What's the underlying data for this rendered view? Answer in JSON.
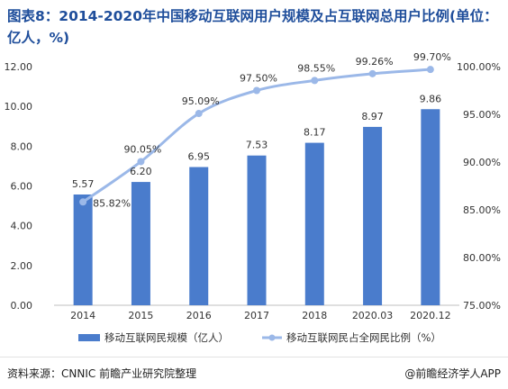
{
  "title": "图表8：2014-2020年中国移动互联网用户规模及占互联网总用户比例(单位：亿人，%)",
  "source": "资料来源：CNNIC 前瞻产业研究院整理",
  "brand": "@前瞻经济学人APP",
  "colors": {
    "bar": "#4a7ccc",
    "line": "#9bb8e8",
    "title": "#1f4e9b"
  },
  "chart_data": {
    "type": "bar",
    "categories": [
      "2014",
      "2015",
      "2016",
      "2017",
      "2018",
      "2020.03",
      "2020.12"
    ],
    "series": [
      {
        "name": "移动互联网民规模（亿人）",
        "type": "bar",
        "axis": "left",
        "values": [
          5.57,
          6.2,
          6.95,
          7.53,
          8.17,
          8.97,
          9.86
        ],
        "labels": [
          "5.57",
          "6.20",
          "6.95",
          "7.53",
          "8.17",
          "8.97",
          "9.86"
        ]
      },
      {
        "name": "移动互联网民占全网民比例（%）",
        "type": "line",
        "axis": "right",
        "values": [
          85.82,
          90.05,
          95.09,
          97.5,
          98.55,
          99.26,
          99.7
        ],
        "labels": [
          "85.82%",
          "90.05%",
          "95.09%",
          "97.50%",
          "98.55%",
          "99.26%",
          "99.70%"
        ]
      }
    ],
    "y_left": {
      "min": 0,
      "max": 12,
      "ticks": [
        "0.00",
        "2.00",
        "4.00",
        "6.00",
        "8.00",
        "10.00",
        "12.00"
      ]
    },
    "y_right": {
      "min": 75,
      "max": 100,
      "ticks": [
        "75.00%",
        "80.00%",
        "85.00%",
        "90.00%",
        "95.00%",
        "100.00%"
      ]
    },
    "grid": false,
    "legend": "bottom"
  }
}
